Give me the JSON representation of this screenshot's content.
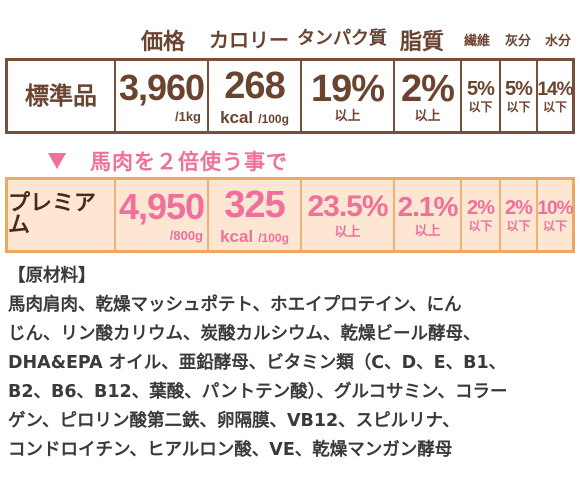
{
  "header": {
    "price": "価格",
    "calorie": "カロリー",
    "protein": "タンパク質",
    "fat": "脂質",
    "fiber": "繊維",
    "ash": "灰分",
    "moisture": "水分"
  },
  "standard": {
    "label": "標準品",
    "price": "3,960",
    "price_unit": "/1kg",
    "calorie": "268",
    "calorie_unit_kcal": "kcal",
    "calorie_unit_per": "/100g",
    "protein": "19%",
    "protein_suffix": "以上",
    "fat": "2%",
    "fat_suffix": "以上",
    "fiber": "5%",
    "fiber_suffix": "以下",
    "ash": "5%",
    "ash_suffix": "以下",
    "moisture": "14%",
    "moisture_suffix": "以下"
  },
  "transition": {
    "text": "馬肉を２倍使う事で"
  },
  "premium": {
    "label": "プレミアム",
    "price": "4,950",
    "price_unit": "/800g",
    "calorie": "325",
    "calorie_unit_kcal": "kcal",
    "calorie_unit_per": "/100g",
    "protein": "23.5%",
    "protein_suffix": "以上",
    "fat": "2.1%",
    "fat_suffix": "以上",
    "fiber": "2%",
    "fiber_suffix": "以下",
    "ash": "2%",
    "ash_suffix": "以下",
    "moisture": "10%",
    "moisture_suffix": "以下"
  },
  "ingredients": {
    "heading": "【原材料】",
    "lines": [
      "馬肉肩肉、乾燥マッシュポテト、ホエイプロテイン、にん",
      "じん、リン酸カリウム、炭酸カルシウム、乾燥ビール酵母、",
      "DHA&EPA オイル、亜鉛酵母、ビタミン類（C、D、E、B1、",
      "B2、B6、B12、葉酸、パントテン酸）、グルコサミン、コラー",
      "ゲン、ピロリン酸第二鉄、卵隔膜、VB12、スピルリナ、",
      "コンドロイチン、ヒアルロン酸、VE、乾燥マンガン酵母"
    ]
  },
  "colors": {
    "brown": "#6b4430",
    "pink": "#f0709b",
    "orange_border": "#f0a760",
    "premium_bg": "#fde7d3"
  }
}
